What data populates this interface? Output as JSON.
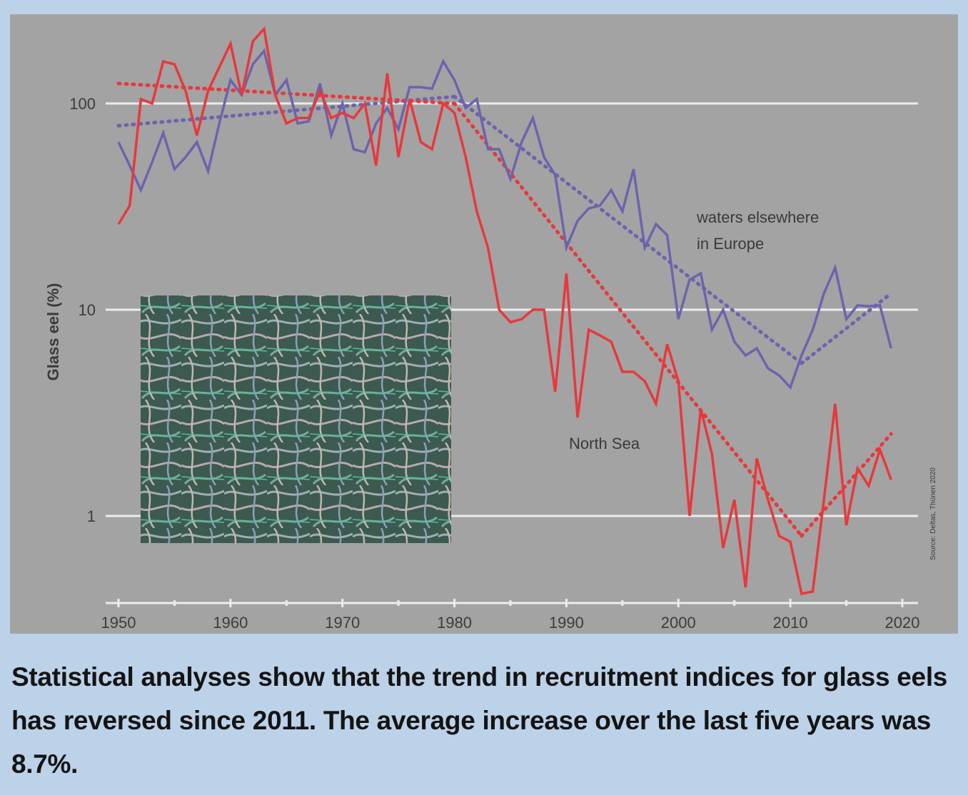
{
  "caption": "Statistical analyses show that the trend in recruitment indices for glass eels has reversed since 2011. The average increase over the last five years was 8.7%.",
  "chart_data": {
    "type": "line",
    "ylabel": "Glass eel (%)",
    "yscale": "log",
    "ylim": [
      0.38,
      250
    ],
    "xlim": [
      1949,
      2021
    ],
    "x_ticks": [
      "1950",
      "1960",
      "1970",
      "1980",
      "1990",
      "2000",
      "2010",
      "2020"
    ],
    "y_ticks": [
      {
        "value": 100,
        "label": "100"
      },
      {
        "value": 10,
        "label": "10"
      },
      {
        "value": 1,
        "label": "1"
      }
    ],
    "grid": "horizontal",
    "annotations": {
      "europe_line1": "waters elsewhere",
      "europe_line2": "in Europe",
      "north_sea": "North Sea"
    },
    "source_note": "Source: Deltas, Thünen 2020",
    "colors": {
      "europe": "#6b64ad",
      "north_sea": "#e8383b",
      "background": "#a3a3a3",
      "grid": "#ececec"
    },
    "series": [
      {
        "key": "europe",
        "x": [
          1950,
          1951,
          1952,
          1953,
          1954,
          1955,
          1956,
          1957,
          1958,
          1959,
          1960,
          1961,
          1962,
          1963,
          1964,
          1965,
          1966,
          1967,
          1968,
          1969,
          1970,
          1971,
          1972,
          1973,
          1974,
          1975,
          1976,
          1977,
          1978,
          1979,
          1980,
          1981,
          1982,
          1983,
          1984,
          1985,
          1986,
          1987,
          1988,
          1989,
          1990,
          1991,
          1992,
          1993,
          1994,
          1995,
          1996,
          1997,
          1998,
          1999,
          2000,
          2001,
          2002,
          2003,
          2004,
          2005,
          2006,
          2007,
          2008,
          2009,
          2010,
          2011,
          2012,
          2013,
          2014,
          2015,
          2016,
          2017,
          2018,
          2019
        ],
        "values": [
          65,
          50,
          38,
          52,
          72,
          48,
          55,
          65,
          47,
          80,
          130,
          110,
          155,
          180,
          110,
          130,
          80,
          82,
          125,
          70,
          100,
          60,
          58,
          80,
          95,
          75,
          120,
          120,
          118,
          160,
          130,
          95,
          105,
          60,
          60,
          43,
          65,
          85,
          55,
          45,
          20,
          27,
          31,
          32,
          38,
          30,
          48,
          20,
          26,
          23,
          9,
          14,
          15,
          8,
          10,
          7,
          6,
          6.5,
          5.2,
          4.8,
          4.2,
          6,
          8,
          12,
          16,
          9,
          10.5,
          10.4,
          10.5,
          6.5
        ]
      },
      {
        "key": "north_sea",
        "x": [
          1950,
          1951,
          1952,
          1953,
          1954,
          1955,
          1956,
          1957,
          1958,
          1959,
          1960,
          1961,
          1962,
          1963,
          1964,
          1965,
          1966,
          1967,
          1968,
          1969,
          1970,
          1971,
          1972,
          1973,
          1974,
          1975,
          1976,
          1977,
          1978,
          1979,
          1980,
          1981,
          1982,
          1983,
          1984,
          1985,
          1986,
          1987,
          1988,
          1989,
          1990,
          1991,
          1992,
          1993,
          1994,
          1995,
          1996,
          1997,
          1998,
          1999,
          2000,
          2001,
          2002,
          2003,
          2004,
          2005,
          2006,
          2007,
          2008,
          2009,
          2010,
          2011,
          2012,
          2013,
          2014,
          2015,
          2016,
          2017,
          2018,
          2019
        ],
        "values": [
          26,
          32,
          105,
          100,
          160,
          155,
          115,
          70,
          115,
          150,
          195,
          110,
          200,
          230,
          110,
          80,
          85,
          85,
          115,
          85,
          90,
          85,
          100,
          50,
          140,
          55,
          105,
          65,
          60,
          100,
          90,
          55,
          30,
          20,
          10,
          8.7,
          9,
          10,
          10,
          4,
          15,
          3,
          8,
          7.5,
          7,
          5,
          5,
          4.5,
          3.5,
          6.8,
          4.5,
          1,
          3.3,
          2,
          0.7,
          1.2,
          0.45,
          1.9,
          1.2,
          0.8,
          0.75,
          0.42,
          0.43,
          1.2,
          3.5,
          0.9,
          1.7,
          1.4,
          2.1,
          1.5
        ]
      }
    ],
    "trends": [
      {
        "key": "europe_trend_1",
        "x": [
          1950,
          1980
        ],
        "values": [
          78,
          108
        ]
      },
      {
        "key": "europe_trend_2",
        "x": [
          1980,
          2011
        ],
        "values": [
          108,
          5.5
        ]
      },
      {
        "key": "europe_trend_3",
        "x": [
          2011,
          2019
        ],
        "values": [
          5.5,
          12
        ]
      },
      {
        "key": "north_sea_trend_1",
        "x": [
          1950,
          1980
        ],
        "values": [
          125,
          100
        ]
      },
      {
        "key": "north_sea_trend_2",
        "x": [
          1980,
          2011
        ],
        "values": [
          100,
          0.8
        ]
      },
      {
        "key": "north_sea_trend_3",
        "x": [
          2011,
          2019
        ],
        "values": [
          0.8,
          2.5
        ]
      }
    ]
  }
}
